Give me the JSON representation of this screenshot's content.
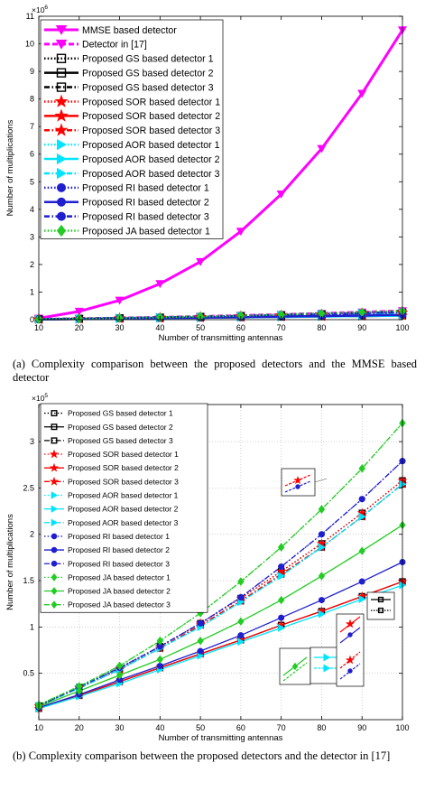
{
  "chart_data": [
    {
      "type": "line",
      "xlabel": "Number of transmitting antennas",
      "ylabel": "Number of multiplications",
      "exponent_label": "6",
      "x": [
        10,
        20,
        30,
        40,
        50,
        60,
        70,
        80,
        90,
        100
      ],
      "xlim": [
        10,
        100
      ],
      "ylim": [
        0,
        11
      ],
      "y_scale": 1000000,
      "yticks": [
        0,
        1,
        2,
        3,
        4,
        5,
        6,
        7,
        8,
        9,
        10,
        11
      ],
      "xticks": [
        10,
        20,
        30,
        40,
        50,
        60,
        70,
        80,
        90,
        100
      ],
      "grid": false,
      "legend_position": "top-left",
      "series": [
        {
          "name": "MMSE based detector",
          "color": "#ff00ff",
          "marker": "triangle-down",
          "dash": "solid",
          "width": 3,
          "values": [
            0.05,
            0.3,
            0.7,
            1.3,
            2.1,
            3.2,
            4.55,
            6.2,
            8.2,
            10.5
          ]
        },
        {
          "name": "Detector in [17]",
          "color": "#ff00ff",
          "marker": "triangle-down",
          "dash": "dash",
          "width": 3,
          "values": [
            0.015,
            0.035,
            0.058,
            0.085,
            0.115,
            0.15,
            0.186,
            0.227,
            0.271,
            0.32
          ]
        },
        {
          "name": "Proposed GS based detector 1",
          "color": "#000000",
          "marker": "square",
          "dash": "dot",
          "width": 2.5,
          "values": [
            0.015,
            0.035,
            0.055,
            0.079,
            0.104,
            0.131,
            0.16,
            0.19,
            0.223,
            0.258
          ]
        },
        {
          "name": "Proposed GS based detector 2",
          "color": "#000000",
          "marker": "square",
          "dash": "solid",
          "width": 2.5,
          "values": [
            0.012,
            0.026,
            0.041,
            0.056,
            0.071,
            0.086,
            0.102,
            0.117,
            0.133,
            0.149
          ]
        },
        {
          "name": "Proposed GS based detector 3",
          "color": "#000000",
          "marker": "square",
          "dash": "dashdot",
          "width": 2.5,
          "values": [
            0.015,
            0.034,
            0.054,
            0.077,
            0.102,
            0.128,
            0.157,
            0.186,
            0.219,
            0.254
          ]
        },
        {
          "name": "Proposed SOR based detector 1",
          "color": "#ff0000",
          "marker": "star",
          "dash": "dot",
          "width": 2.5,
          "values": [
            0.015,
            0.035,
            0.055,
            0.079,
            0.104,
            0.131,
            0.16,
            0.19,
            0.223,
            0.258
          ]
        },
        {
          "name": "Proposed SOR based detector 2",
          "color": "#ff0000",
          "marker": "star",
          "dash": "solid",
          "width": 2.5,
          "values": [
            0.012,
            0.026,
            0.041,
            0.056,
            0.071,
            0.086,
            0.102,
            0.117,
            0.133,
            0.149
          ]
        },
        {
          "name": "Proposed SOR based detector 3",
          "color": "#ff0000",
          "marker": "star",
          "dash": "dashdot",
          "width": 2.5,
          "values": [
            0.015,
            0.034,
            0.054,
            0.077,
            0.102,
            0.128,
            0.157,
            0.186,
            0.219,
            0.254
          ]
        },
        {
          "name": "Proposed AOR based detector 1",
          "color": "#00e5ff",
          "marker": "triangle-right",
          "dash": "dot",
          "width": 2.5,
          "values": [
            0.015,
            0.034,
            0.054,
            0.077,
            0.1,
            0.127,
            0.155,
            0.186,
            0.219,
            0.254
          ]
        },
        {
          "name": "Proposed AOR based detector 2",
          "color": "#00e5ff",
          "marker": "triangle-right",
          "dash": "solid",
          "width": 2.5,
          "values": [
            0.012,
            0.025,
            0.039,
            0.054,
            0.069,
            0.084,
            0.099,
            0.114,
            0.13,
            0.145
          ]
        },
        {
          "name": "Proposed AOR based detector 3",
          "color": "#00e5ff",
          "marker": "triangle-right",
          "dash": "dashdot",
          "width": 2.5,
          "values": [
            0.015,
            0.034,
            0.054,
            0.077,
            0.1,
            0.127,
            0.155,
            0.186,
            0.219,
            0.254
          ]
        },
        {
          "name": "Proposed RI based detector 1",
          "color": "#1f1fd0",
          "marker": "circle",
          "dash": "dot",
          "width": 2.5,
          "values": [
            0.015,
            0.035,
            0.056,
            0.079,
            0.104,
            0.132,
            0.165,
            0.2,
            0.238,
            0.279
          ]
        },
        {
          "name": "Proposed RI based detector 2",
          "color": "#1f1fd0",
          "marker": "circle",
          "dash": "solid",
          "width": 2.5,
          "values": [
            0.013,
            0.027,
            0.043,
            0.058,
            0.074,
            0.091,
            0.11,
            0.129,
            0.149,
            0.17
          ]
        },
        {
          "name": "Proposed RI based detector 3",
          "color": "#1f1fd0",
          "marker": "circle",
          "dash": "dashdot",
          "width": 2.5,
          "values": [
            0.015,
            0.035,
            0.056,
            0.079,
            0.104,
            0.132,
            0.165,
            0.2,
            0.238,
            0.279
          ]
        },
        {
          "name": "Proposed JA based detector 1",
          "color": "#22cc22",
          "marker": "diamond",
          "dash": "dot",
          "width": 2.5,
          "values": [
            0.016,
            0.036,
            0.058,
            0.085,
            0.115,
            0.149,
            0.186,
            0.227,
            0.271,
            0.32
          ]
        }
      ]
    },
    {
      "type": "line",
      "xlabel": "Number of transmitting antennas",
      "ylabel": "Number of multiplications",
      "exponent_label": "5",
      "x": [
        10,
        20,
        30,
        40,
        50,
        60,
        70,
        80,
        90,
        100
      ],
      "xlim": [
        10,
        100
      ],
      "ylim": [
        0,
        3.4
      ],
      "y_scale": 100000,
      "yticks": [
        0.5,
        1,
        1.5,
        2,
        2.5,
        3
      ],
      "xticks": [
        10,
        20,
        30,
        40,
        50,
        60,
        70,
        80,
        90,
        100
      ],
      "grid": true,
      "legend_position": "top-left",
      "series": [
        {
          "name": "Proposed GS based detector 1",
          "color": "#000000",
          "marker": "square",
          "dash": "dot",
          "width": 1.3,
          "values": [
            0.15,
            0.35,
            0.55,
            0.79,
            1.04,
            1.31,
            1.6,
            1.9,
            2.23,
            2.58
          ]
        },
        {
          "name": "Proposed GS based detector 2",
          "color": "#000000",
          "marker": "square",
          "dash": "solid",
          "width": 1.3,
          "values": [
            0.12,
            0.26,
            0.41,
            0.56,
            0.71,
            0.86,
            1.02,
            1.17,
            1.33,
            1.49
          ]
        },
        {
          "name": "Proposed GS based detector 3",
          "color": "#000000",
          "marker": "square",
          "dash": "dashdot",
          "width": 1.3,
          "values": [
            0.15,
            0.34,
            0.54,
            0.77,
            1.02,
            1.28,
            1.57,
            1.86,
            2.19,
            2.54
          ]
        },
        {
          "name": "Proposed SOR based detector 1",
          "color": "#ff0000",
          "marker": "star",
          "dash": "dot",
          "width": 1.3,
          "values": [
            0.15,
            0.35,
            0.55,
            0.79,
            1.04,
            1.31,
            1.6,
            1.9,
            2.23,
            2.58
          ]
        },
        {
          "name": "Proposed SOR based detector 2",
          "color": "#ff0000",
          "marker": "star",
          "dash": "solid",
          "width": 1.3,
          "values": [
            0.12,
            0.26,
            0.41,
            0.56,
            0.71,
            0.86,
            1.02,
            1.17,
            1.33,
            1.49
          ]
        },
        {
          "name": "Proposed SOR based detector 3",
          "color": "#ff0000",
          "marker": "star",
          "dash": "dashdot",
          "width": 1.3,
          "values": [
            0.15,
            0.34,
            0.54,
            0.77,
            1.02,
            1.28,
            1.57,
            1.86,
            2.19,
            2.54
          ]
        },
        {
          "name": "Proposed AOR based detector 1",
          "color": "#00e5ff",
          "marker": "triangle-right",
          "dash": "dot",
          "width": 1.3,
          "values": [
            0.15,
            0.34,
            0.54,
            0.77,
            1.0,
            1.27,
            1.55,
            1.86,
            2.19,
            2.54
          ]
        },
        {
          "name": "Proposed AOR based detector 2",
          "color": "#00e5ff",
          "marker": "triangle-right",
          "dash": "solid",
          "width": 1.3,
          "values": [
            0.12,
            0.25,
            0.39,
            0.54,
            0.69,
            0.84,
            0.99,
            1.14,
            1.3,
            1.45
          ]
        },
        {
          "name": "Proposed AOR based detector 3",
          "color": "#00e5ff",
          "marker": "triangle-right",
          "dash": "dashdot",
          "width": 1.3,
          "values": [
            0.15,
            0.34,
            0.54,
            0.77,
            1.0,
            1.27,
            1.55,
            1.86,
            2.19,
            2.54
          ]
        },
        {
          "name": "Proposed RI based detector 1",
          "color": "#1f1fd0",
          "marker": "circle",
          "dash": "dot",
          "width": 1.3,
          "values": [
            0.15,
            0.35,
            0.56,
            0.79,
            1.04,
            1.32,
            1.65,
            2.0,
            2.38,
            2.79
          ]
        },
        {
          "name": "Proposed RI based detector 2",
          "color": "#1f1fd0",
          "marker": "circle",
          "dash": "solid",
          "width": 1.3,
          "values": [
            0.13,
            0.27,
            0.43,
            0.58,
            0.74,
            0.91,
            1.1,
            1.29,
            1.49,
            1.7
          ]
        },
        {
          "name": "Proposed RI based detector 3",
          "color": "#1f1fd0",
          "marker": "circle",
          "dash": "dashdot",
          "width": 1.3,
          "values": [
            0.15,
            0.35,
            0.56,
            0.79,
            1.04,
            1.32,
            1.65,
            2.0,
            2.38,
            2.79
          ]
        },
        {
          "name": "Proposed JA based detector 1",
          "color": "#22cc22",
          "marker": "diamond",
          "dash": "dot",
          "width": 1.3,
          "values": [
            0.16,
            0.36,
            0.58,
            0.85,
            1.15,
            1.49,
            1.86,
            2.27,
            2.71,
            3.2
          ]
        },
        {
          "name": "Proposed JA based detector 2",
          "color": "#22cc22",
          "marker": "diamond",
          "dash": "solid",
          "width": 1.3,
          "values": [
            0.14,
            0.31,
            0.48,
            0.65,
            0.85,
            1.06,
            1.29,
            1.55,
            1.82,
            2.1
          ]
        },
        {
          "name": "Proposed JA based detector 3",
          "color": "#22cc22",
          "marker": "diamond",
          "dash": "dashdot",
          "width": 1.3,
          "values": [
            0.16,
            0.36,
            0.58,
            0.85,
            1.15,
            1.49,
            1.86,
            2.27,
            2.71,
            3.2
          ]
        }
      ]
    }
  ],
  "captions": {
    "a": "(a) Complexity comparison between the proposed detectors and the MMSE based detector",
    "b": "(b) Complexity comparison between the proposed detectors and the detector in [17]"
  }
}
